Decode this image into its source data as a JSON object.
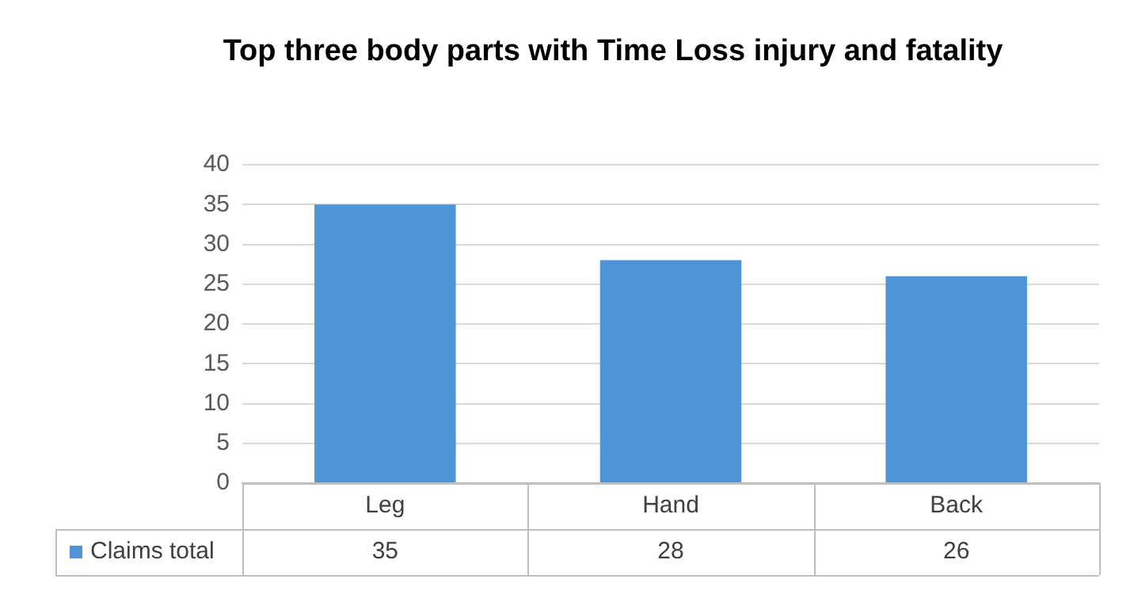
{
  "chart_data": {
    "type": "bar",
    "title": "Top three body parts with Time Loss injury and fatality",
    "categories": [
      "Leg",
      "Hand",
      "Back"
    ],
    "series": [
      {
        "name": "Claims total",
        "color": "#4f94d9",
        "values": [
          35,
          28,
          26
        ]
      }
    ],
    "ylim": [
      0,
      40
    ],
    "yticks": [
      0,
      5,
      10,
      15,
      20,
      25,
      30,
      35,
      40
    ],
    "grid": "y",
    "legend": "bottom",
    "data_labels": true
  }
}
